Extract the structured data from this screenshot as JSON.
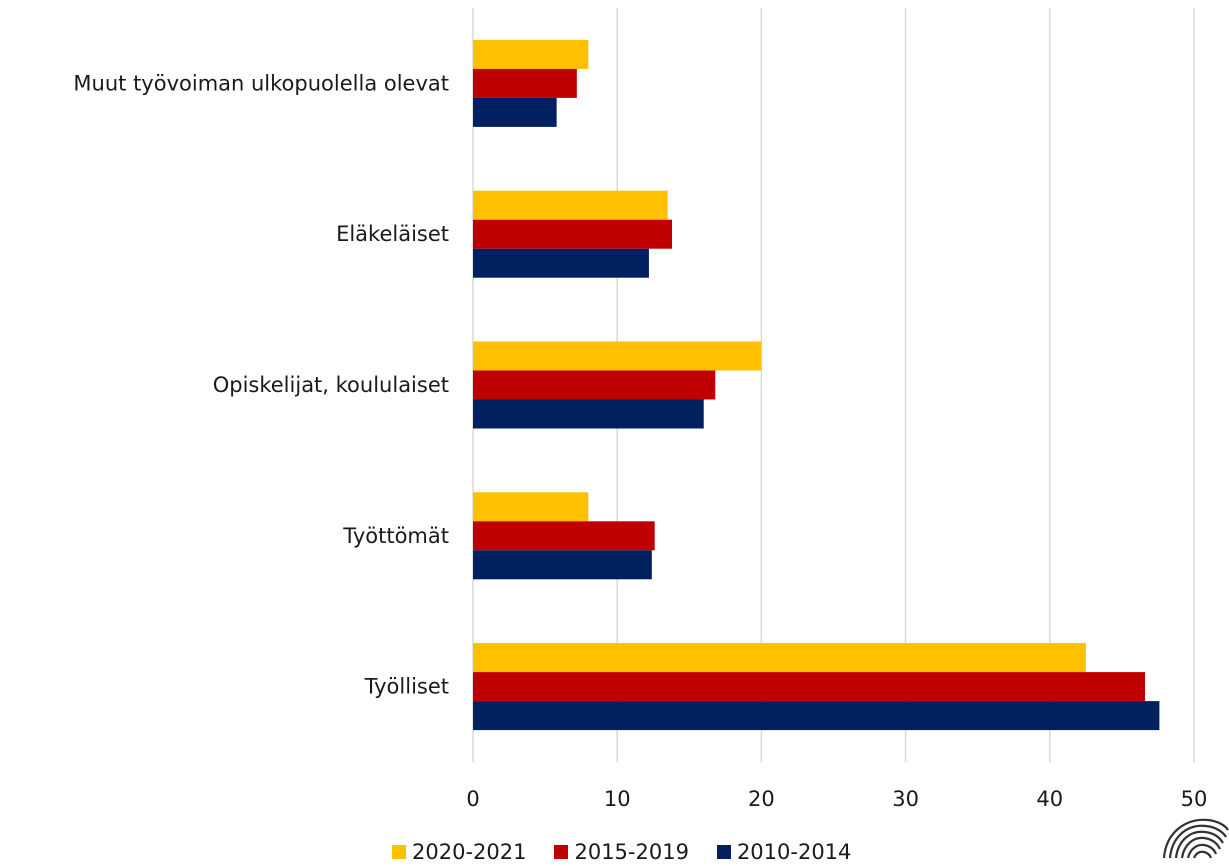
{
  "chart_data": {
    "type": "bar",
    "orientation": "horizontal",
    "categories": [
      "Muut työvoiman ulkopuolella olevat",
      "Eläkeläiset",
      "Opiskelijat, koululaiset",
      "Työttömät",
      "Työlliset"
    ],
    "series": [
      {
        "name": "2020-2021",
        "color": "#FFC000",
        "values": [
          8,
          13.5,
          20,
          8,
          42.5
        ]
      },
      {
        "name": "2015-2019",
        "color": "#C00000",
        "values": [
          7.2,
          13.8,
          16.8,
          12.6,
          46.6
        ]
      },
      {
        "name": "2010-2014",
        "color": "#002060",
        "values": [
          5.8,
          12.2,
          16,
          12.4,
          47.6
        ]
      }
    ],
    "xticks": [
      "0",
      "10",
      "20",
      "30",
      "40",
      "50"
    ],
    "xlim": [
      0,
      50
    ],
    "grid": true,
    "legend_position": "bottom",
    "legend_order": [
      "2020-2021",
      "2015-2019",
      "2010-2014"
    ]
  }
}
